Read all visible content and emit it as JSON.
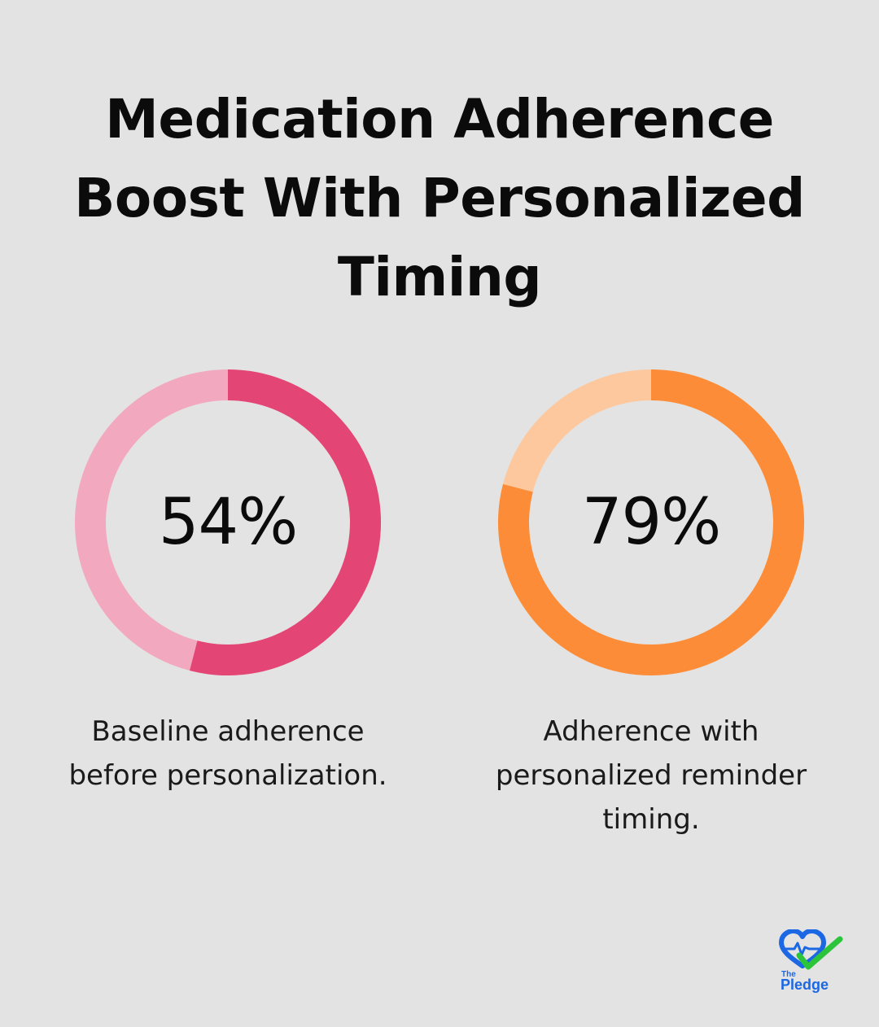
{
  "title_lines": [
    "Medication Adherence",
    "Boost With Personalized",
    "Timing"
  ],
  "chart_data": [
    {
      "type": "pie",
      "variant": "donut",
      "value": 54,
      "max": 100,
      "label": "54%",
      "description_lines": [
        "Baseline adherence",
        "before personalization."
      ],
      "colors": {
        "filled": "#e34575",
        "remainder": "#f2a9c0"
      }
    },
    {
      "type": "pie",
      "variant": "donut",
      "value": 79,
      "max": 100,
      "label": "79%",
      "description_lines": [
        "Adherence with",
        "personalized reminder",
        "timing."
      ],
      "colors": {
        "filled": "#fc8c37",
        "remainder": "#fec89f"
      }
    }
  ],
  "logo": {
    "icon": "heart-check-icon",
    "text_small": "The",
    "text_large": "Pledge",
    "colors": {
      "heart": "#1b67e4",
      "check": "#2bc43a",
      "text": "#1b67e4"
    }
  }
}
